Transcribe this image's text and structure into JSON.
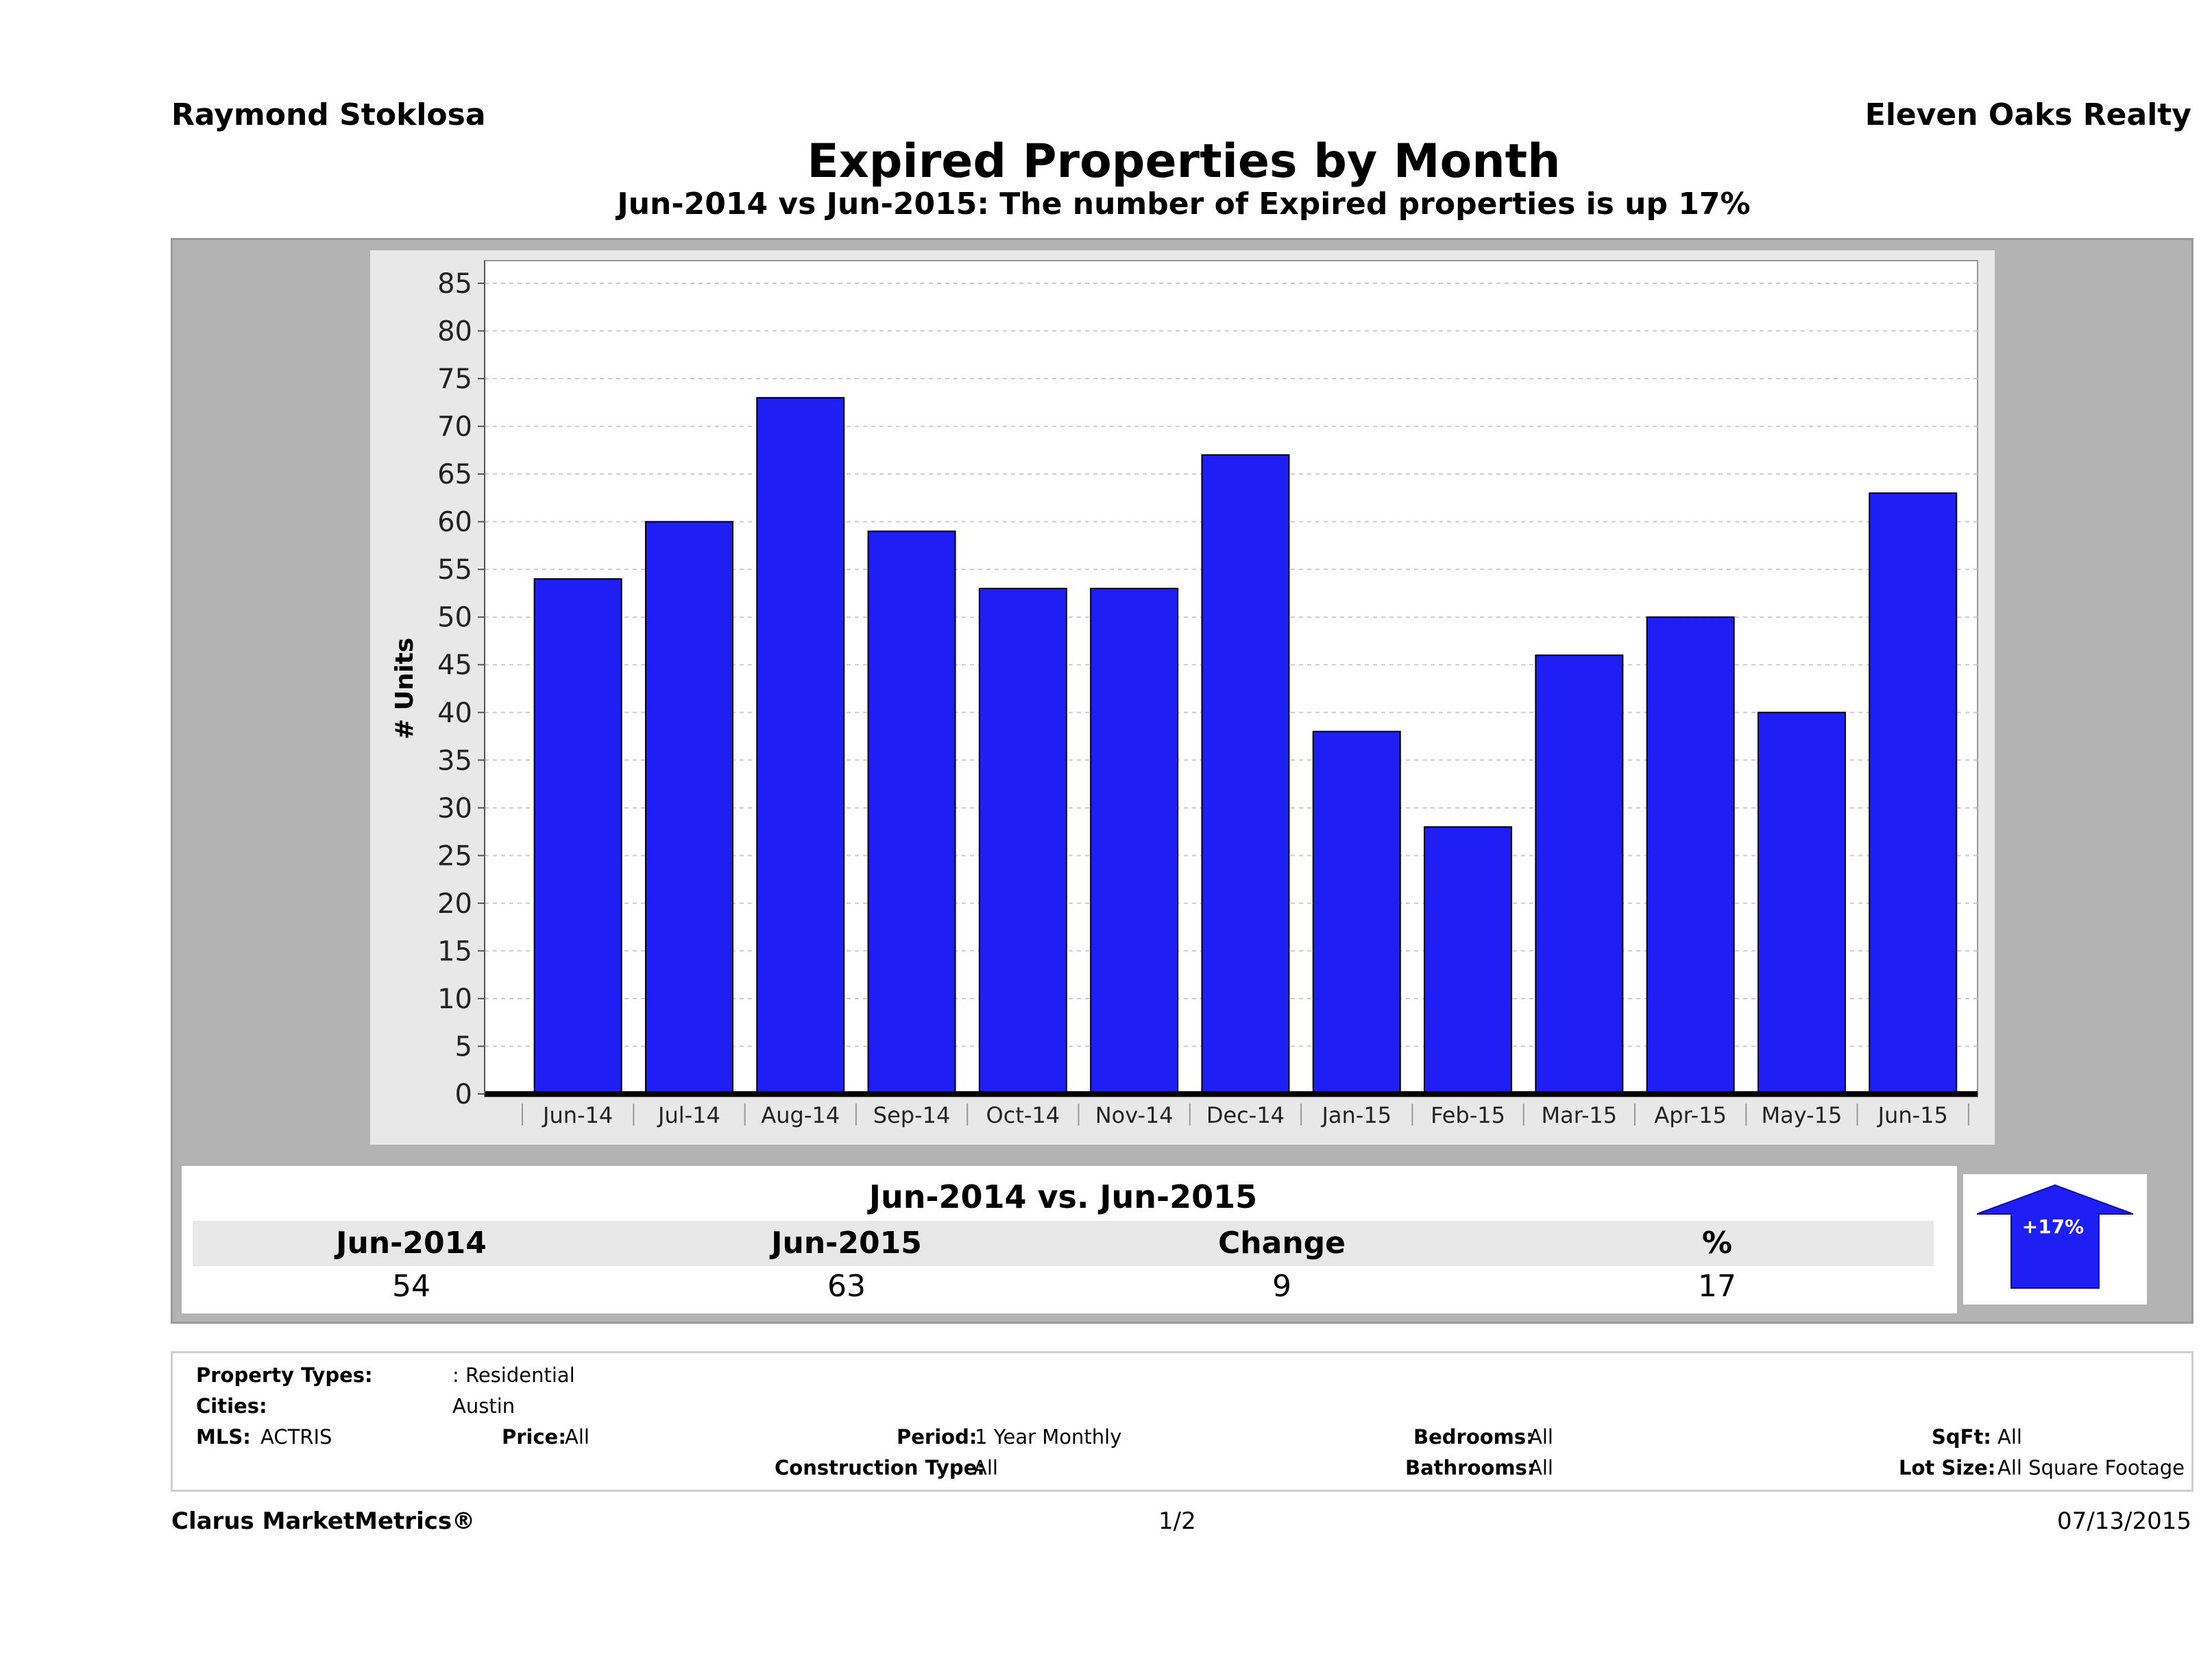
{
  "header": {
    "agent_name": "Raymond Stoklosa",
    "company": "Eleven Oaks Realty"
  },
  "colors": {
    "bar": "#1f1ff5",
    "panel": "#b3b3b3",
    "plot_bg": "#ffffff",
    "arrow": "#1f1ff5"
  },
  "chart_data": {
    "type": "bar",
    "title": "Expired Properties by Month",
    "subtitle": "Jun-2014 vs Jun-2015: The number of Expired  properties is up 17%",
    "ylabel": "# Units",
    "xlabel": "",
    "ylim": [
      0,
      85
    ],
    "yticks": [
      0,
      5,
      10,
      15,
      20,
      25,
      30,
      35,
      40,
      45,
      50,
      55,
      60,
      65,
      70,
      75,
      80,
      85
    ],
    "grid": true,
    "categories": [
      "Jun-14",
      "Jul-14",
      "Aug-14",
      "Sep-14",
      "Oct-14",
      "Nov-14",
      "Dec-14",
      "Jan-15",
      "Feb-15",
      "Mar-15",
      "Apr-15",
      "May-15",
      "Jun-15"
    ],
    "values": [
      54,
      60,
      73,
      59,
      53,
      53,
      67,
      38,
      28,
      46,
      50,
      40,
      63
    ]
  },
  "summary": {
    "title": "Jun-2014 vs. Jun-2015",
    "headers": [
      "Jun-2014",
      "Jun-2015",
      "Change",
      "%"
    ],
    "values": [
      "54",
      "63",
      "9",
      "17"
    ],
    "arrow_label": "+17%",
    "arrow_icon": "up-arrow-icon"
  },
  "filters": {
    "property_types_label": "Property Types:",
    "property_types_value": ": Residential",
    "cities_label": "Cities:",
    "cities_value": "Austin",
    "mls_label": "MLS:",
    "mls_value": "ACTRIS",
    "price_label": "Price:",
    "price_value": "All",
    "period_label": "Period:",
    "period_value": "1 Year Monthly",
    "construction_label": "Construction Type:",
    "construction_value": "All",
    "bedrooms_label": "Bedrooms:",
    "bedrooms_value": "All",
    "bathrooms_label": "Bathrooms:",
    "bathrooms_value": "All",
    "sqft_label": "SqFt:",
    "sqft_value": "All",
    "lotsize_label": "Lot Size:",
    "lotsize_value": "All Square Footage"
  },
  "footer": {
    "brand": "Clarus MarketMetrics®",
    "page": "1/2",
    "date": "07/13/2015"
  }
}
